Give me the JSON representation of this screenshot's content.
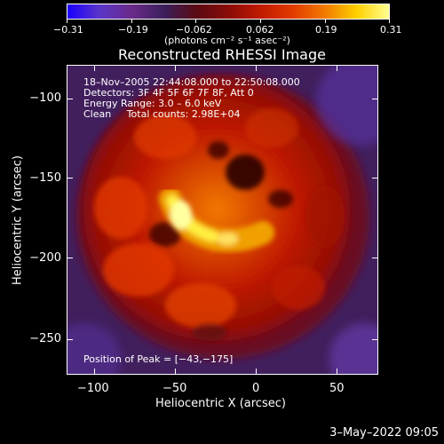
{
  "colorbar": {
    "ticks": [
      {
        "label": "−0.31"
      },
      {
        "label": "−0.19"
      },
      {
        "label": "−0.062"
      },
      {
        "label": "0.062"
      },
      {
        "label": "0.19"
      },
      {
        "label": "0.31"
      }
    ],
    "units": "(photons cm⁻² s⁻¹ asec⁻²)",
    "range": [
      -0.31,
      0.31
    ]
  },
  "title": "Reconstructed RHESSI Image",
  "annotations": {
    "time": "18–Nov–2005 22:44:08.000 to 22:50:08.000",
    "detectors": "Detectors: 3F 4F 5F 6F 7F 8F, Att 0",
    "energy": "Energy Range: 3.0 – 6.0 keV",
    "method": "Clean     Total counts: 2.98E+04",
    "peak": "Position of Peak = [−43,−175]"
  },
  "axes": {
    "xlabel": "Heliocentric X (arcsec)",
    "ylabel": "Heliocentric Y (arcsec)",
    "xlim": [
      -118,
      75
    ],
    "ylim": [
      -275,
      -83
    ],
    "xticks": [
      {
        "value": -100,
        "label": "−100"
      },
      {
        "value": -50,
        "label": "−50"
      },
      {
        "value": 0,
        "label": "0"
      },
      {
        "value": 50,
        "label": "50"
      }
    ],
    "yticks": [
      {
        "value": -100,
        "label": "−100"
      },
      {
        "value": -150,
        "label": "−150"
      },
      {
        "value": -200,
        "label": "−200"
      },
      {
        "value": -250,
        "label": "−250"
      }
    ]
  },
  "datestamp": "3–May–2022 09:05",
  "colors": {
    "background": "#000000",
    "foreground": "#ffffff",
    "colormap": [
      "#1a00ff",
      "#5a35c8",
      "#6a2a8a",
      "#3b1f5c",
      "#5a0a14",
      "#8a0c08",
      "#c01a00",
      "#e23a00",
      "#f27a00",
      "#ffd000",
      "#ffff90"
    ]
  }
}
